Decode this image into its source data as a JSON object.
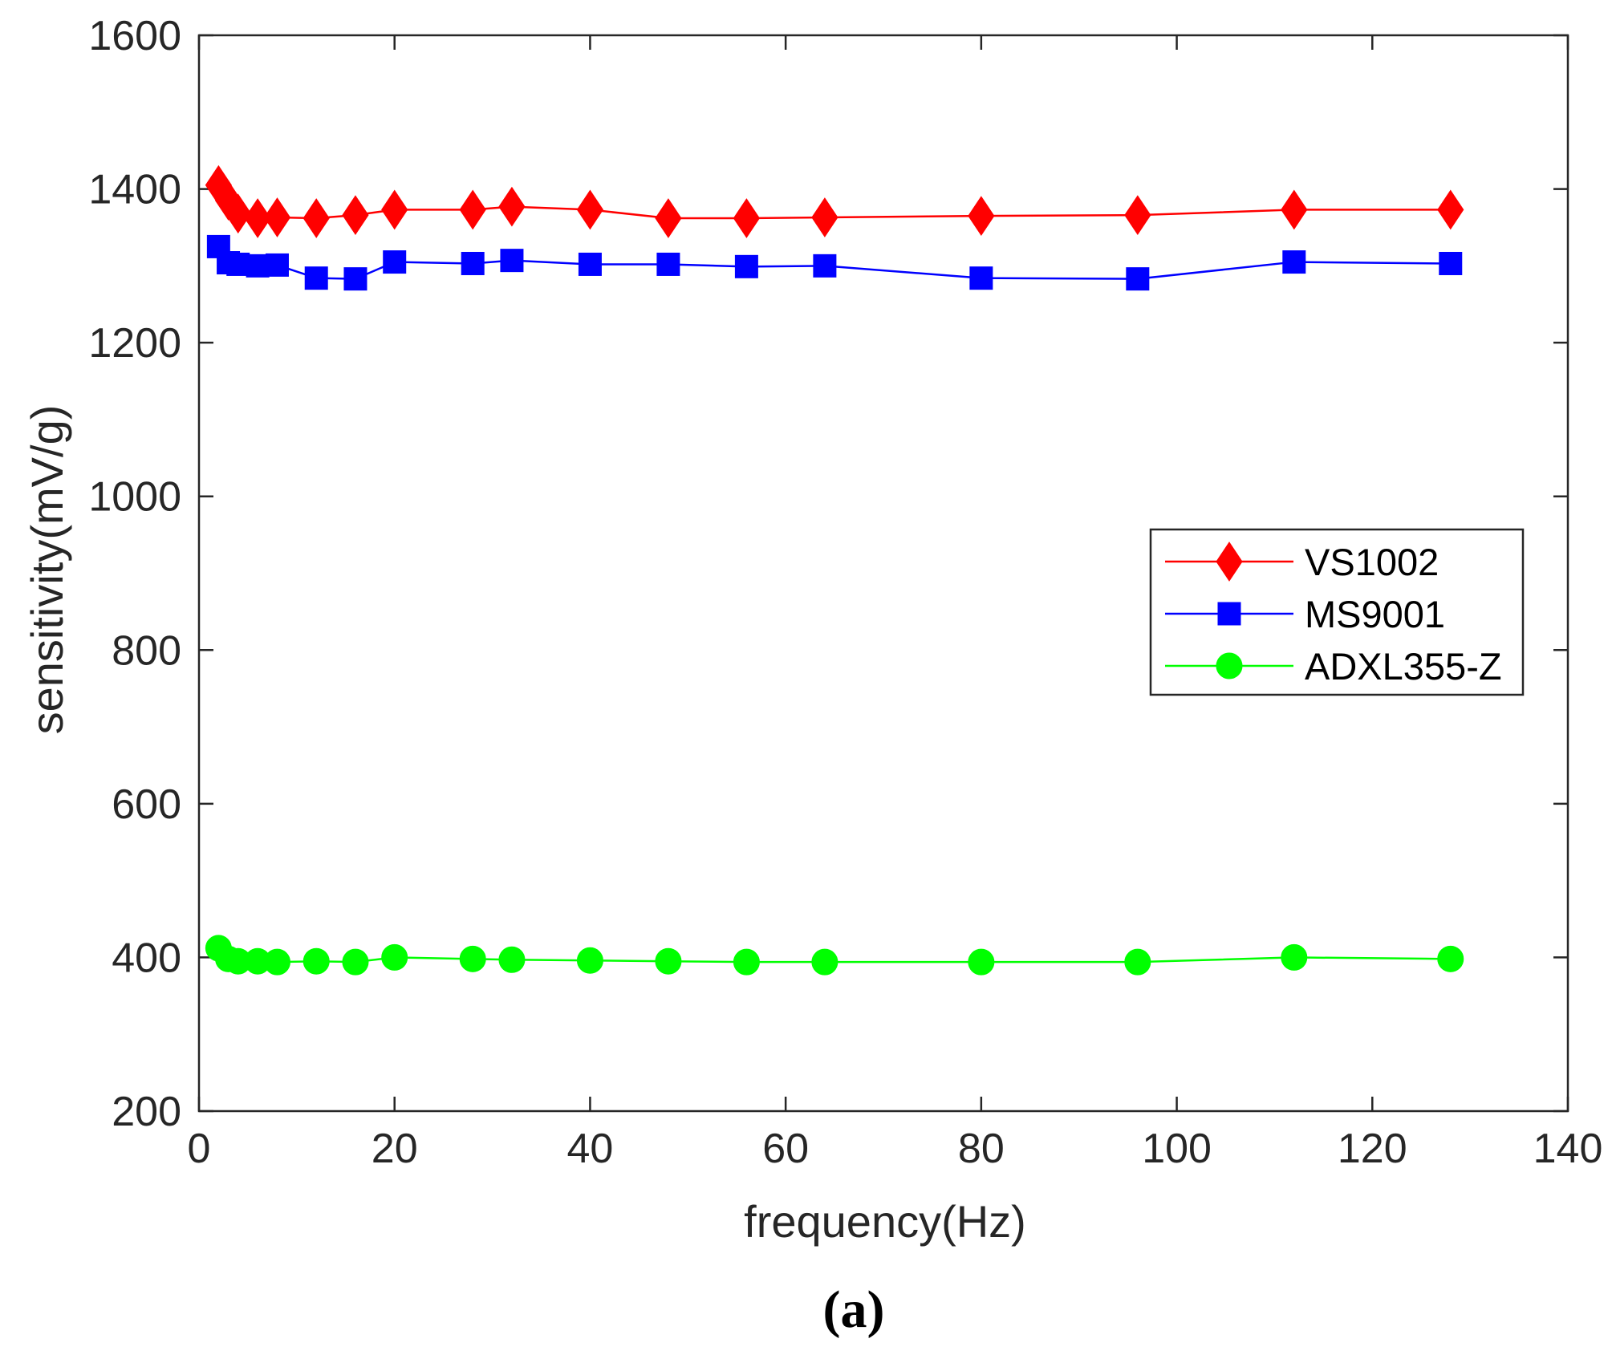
{
  "chart_data": {
    "type": "line",
    "xlabel": "frequency(Hz)",
    "ylabel": "sensitivity(mV/g)",
    "xlim": [
      0,
      140
    ],
    "ylim": [
      200,
      1600
    ],
    "x_ticks": [
      0,
      20,
      40,
      60,
      80,
      100,
      120,
      140
    ],
    "y_ticks": [
      200,
      400,
      600,
      800,
      1000,
      1200,
      1400,
      1600
    ],
    "grid": false,
    "legend_position": "right",
    "panel_label": "(a)",
    "x": [
      2,
      3,
      4,
      6,
      8,
      12,
      16,
      20,
      28,
      32,
      40,
      48,
      56,
      64,
      80,
      96,
      112,
      128
    ],
    "series": [
      {
        "name": "VS1002",
        "color": "#ff0000",
        "marker": "diamond",
        "values": [
          1405,
          1385,
          1368,
          1362,
          1363,
          1362,
          1366,
          1373,
          1373,
          1377,
          1373,
          1362,
          1362,
          1363,
          1365,
          1366,
          1373,
          1373
        ]
      },
      {
        "name": "MS9001",
        "color": "#0000ff",
        "marker": "square",
        "values": [
          1325,
          1304,
          1302,
          1300,
          1301,
          1284,
          1283,
          1305,
          1303,
          1307,
          1302,
          1302,
          1299,
          1300,
          1284,
          1283,
          1305,
          1303
        ]
      },
      {
        "name": "ADXL355-Z",
        "color": "#00ff00",
        "marker": "circle",
        "values": [
          412,
          398,
          395,
          395,
          394,
          395,
          394,
          400,
          398,
          397,
          396,
          395,
          394,
          394,
          394,
          394,
          400,
          398
        ]
      }
    ]
  }
}
